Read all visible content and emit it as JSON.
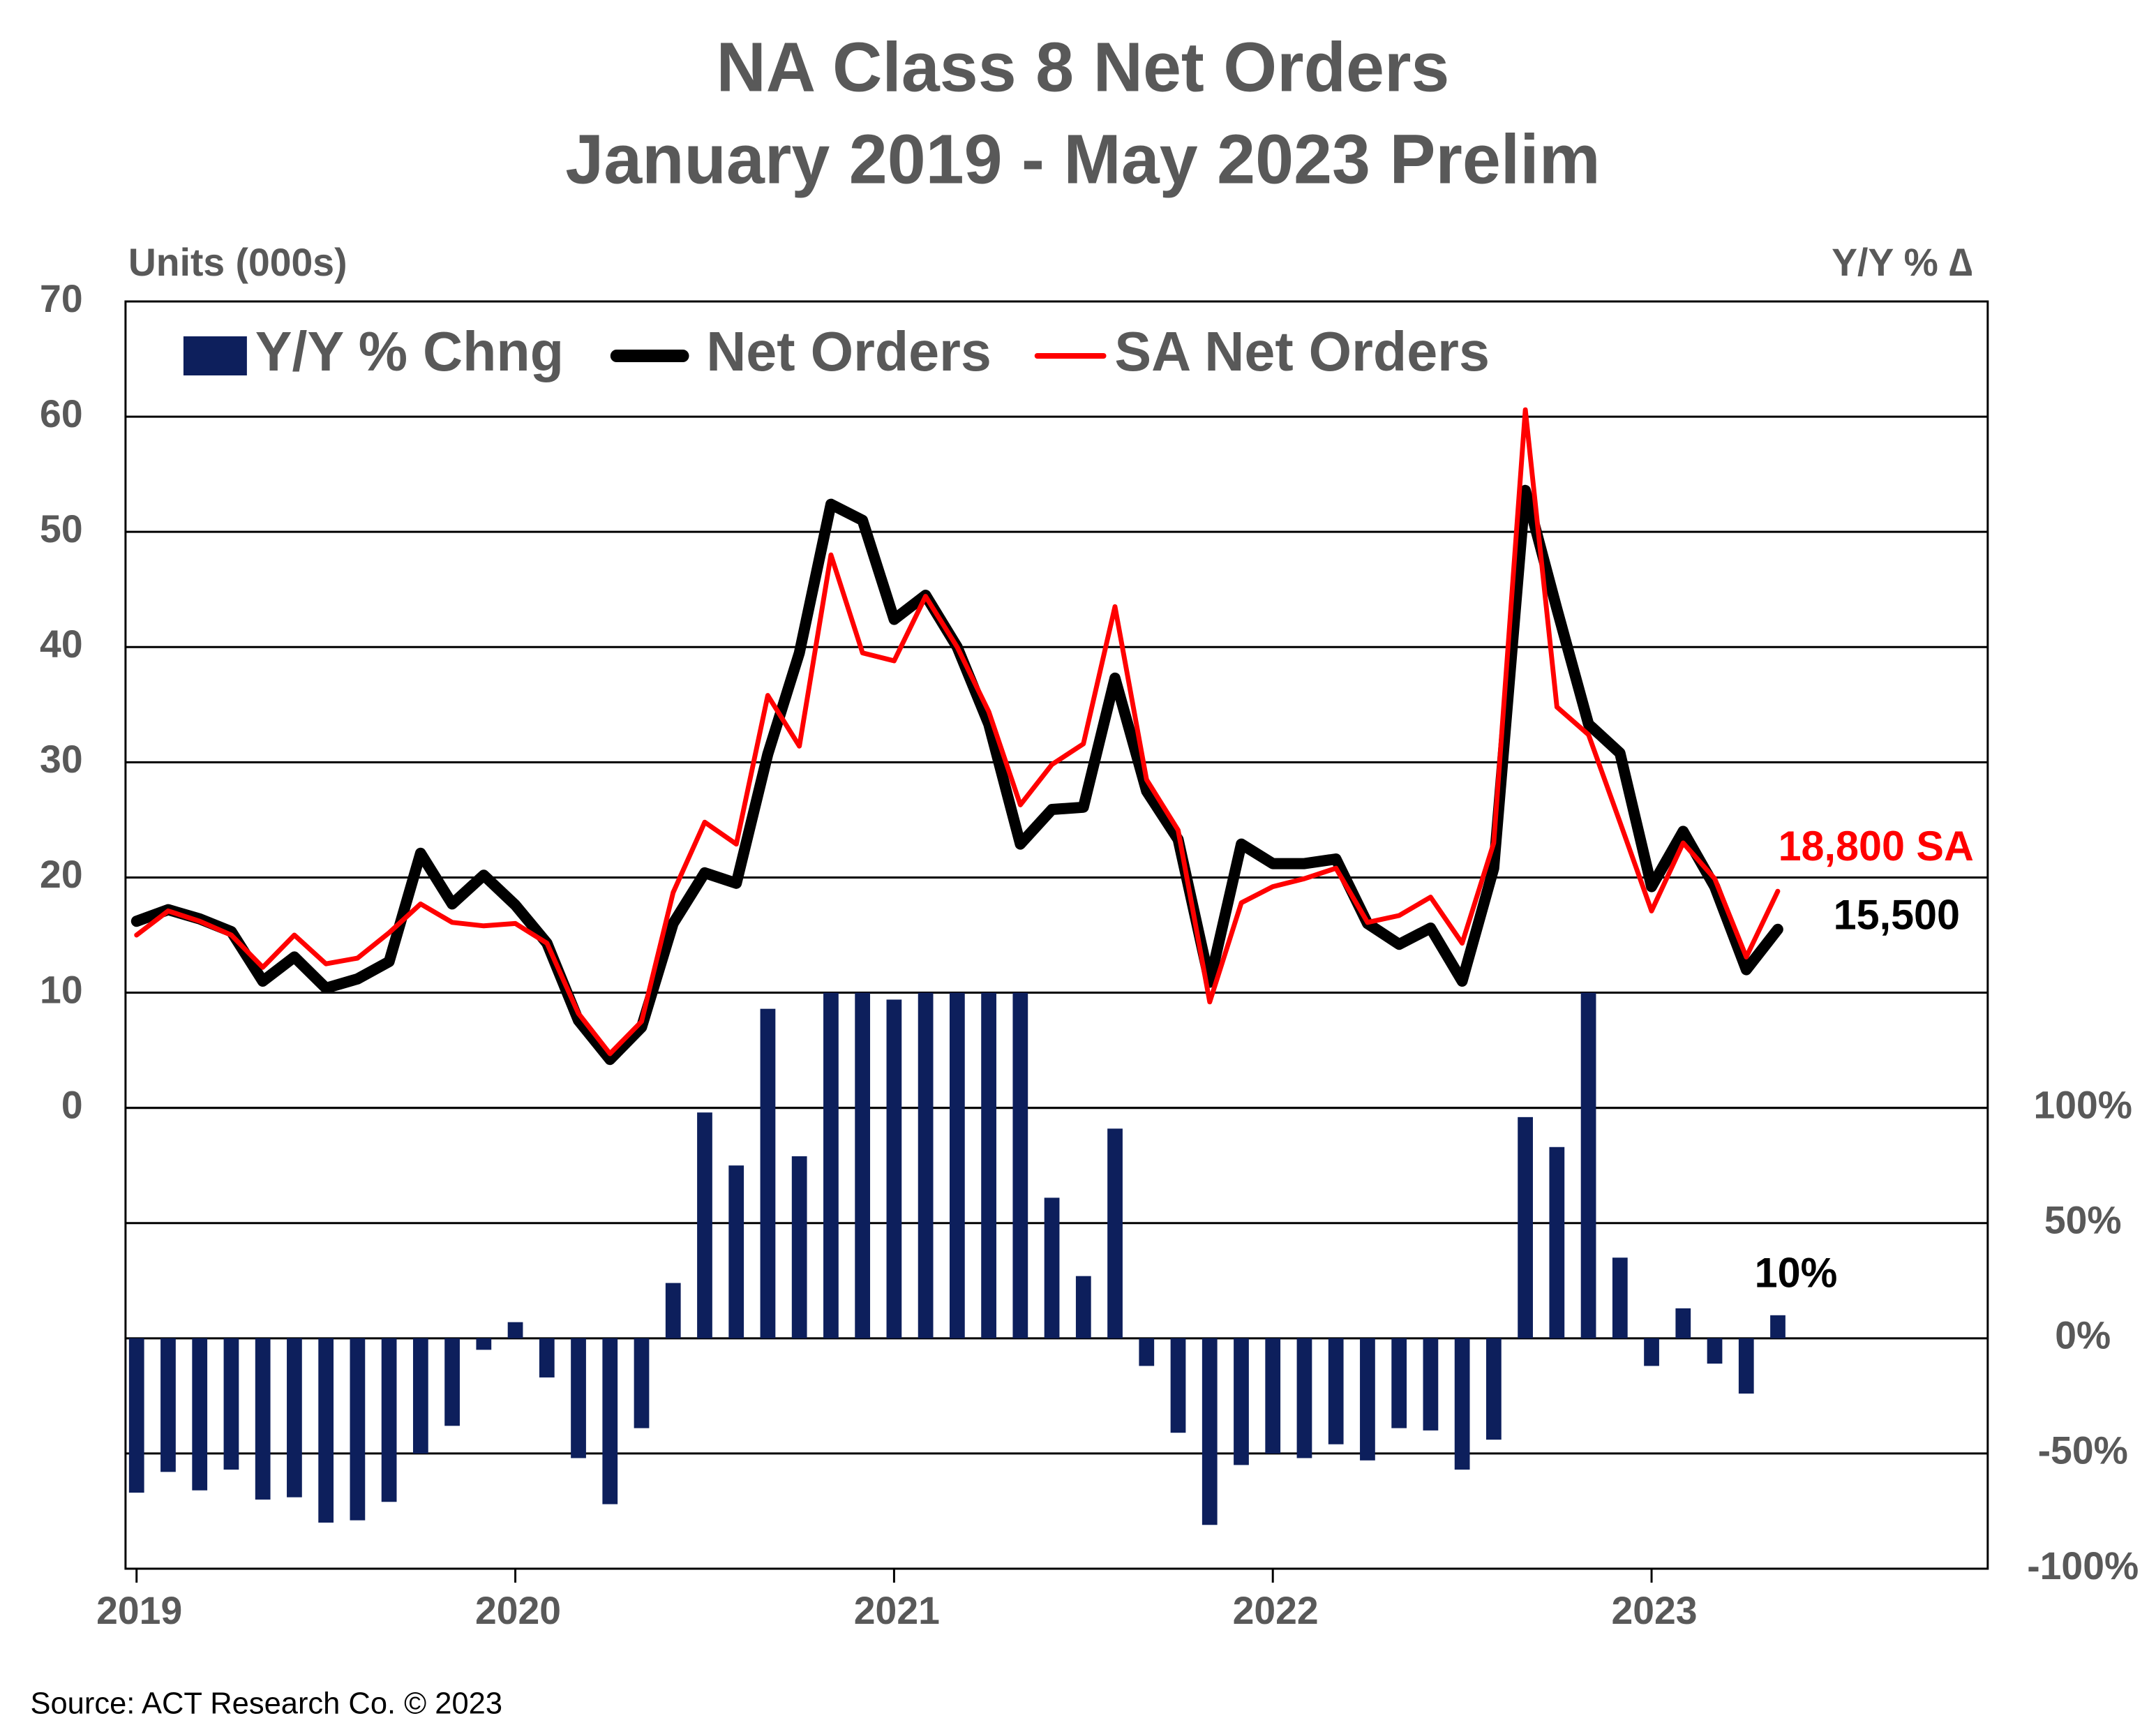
{
  "chart_data": {
    "type": "bar-line",
    "title": "NA Class 8 Net Orders",
    "subtitle": "January 2019 - May 2023 Prelim",
    "ylabel": "Units (000s)",
    "y2label": "Y/Y % ∆",
    "source": "Source: ACT Research Co. © 2023",
    "categories": [
      "2019",
      null,
      null,
      null,
      null,
      null,
      null,
      null,
      null,
      null,
      null,
      null,
      "2020",
      null,
      null,
      null,
      null,
      null,
      null,
      null,
      null,
      null,
      null,
      null,
      "2021",
      null,
      null,
      null,
      null,
      null,
      null,
      null,
      null,
      null,
      null,
      null,
      "2022",
      null,
      null,
      null,
      null,
      null,
      null,
      null,
      null,
      null,
      null,
      null,
      "2023",
      null,
      null,
      null,
      null
    ],
    "ylim": [
      -40,
      70
    ],
    "yticks": [
      0,
      10,
      20,
      30,
      40,
      50,
      60,
      70
    ],
    "y2lim": [
      -100,
      450
    ],
    "y2ticks": [
      {
        "value": -100,
        "label": "-100%"
      },
      {
        "value": -50,
        "label": "-50%"
      },
      {
        "value": 0,
        "label": "0%"
      },
      {
        "value": 50,
        "label": "50%"
      },
      {
        "value": 100,
        "label": "100%"
      }
    ],
    "grid": true,
    "legend": "top-left",
    "series": [
      {
        "name": "Y/Y % Chng",
        "type": "bar",
        "axis": "y2",
        "color": "#0d1f5c",
        "values": [
          -67,
          -58,
          -66,
          -57,
          -70,
          -69,
          -80,
          -79,
          -71,
          -50,
          -38,
          -5,
          7,
          -17,
          -52,
          -72,
          -39,
          24,
          98,
          75,
          143,
          79,
          150,
          150,
          147,
          150,
          150,
          150,
          150,
          61,
          27,
          91,
          -12,
          -41,
          -81,
          -55,
          -50,
          -52,
          -46,
          -53,
          -39,
          -40,
          -57,
          -44,
          96,
          83,
          150,
          35,
          -12,
          13,
          -11,
          -24,
          10
        ]
      },
      {
        "name": "Net Orders",
        "type": "line",
        "color": "#000000",
        "values": [
          16.2,
          17.2,
          16.4,
          15.3,
          11.0,
          13.1,
          10.4,
          11.2,
          12.7,
          22.1,
          17.7,
          20.2,
          17.6,
          14.3,
          7.6,
          4.2,
          7.0,
          16.0,
          20.4,
          19.5,
          30.7,
          39.5,
          52.4,
          51.0,
          42.4,
          44.5,
          40.0,
          33.3,
          22.9,
          25.9,
          26.1,
          37.3,
          27.5,
          23.3,
          10.9,
          22.9,
          21.2,
          21.2,
          21.6,
          16.0,
          14.2,
          15.6,
          11.0,
          20.8,
          53.6,
          43.3,
          33.3,
          30.8,
          19.2,
          24.0,
          19.2,
          12.0,
          15.5
        ]
      },
      {
        "name": "SA Net Orders",
        "type": "line",
        "color": "#ff0000",
        "values": [
          15.0,
          17.1,
          16.2,
          15.0,
          12.2,
          15.0,
          12.5,
          13.0,
          15.2,
          17.7,
          16.1,
          15.8,
          16.0,
          14.3,
          8.2,
          4.7,
          7.5,
          18.7,
          24.8,
          22.9,
          35.8,
          31.4,
          48.0,
          39.5,
          38.8,
          44.4,
          40.0,
          34.4,
          26.3,
          29.8,
          31.6,
          43.5,
          28.5,
          24.1,
          9.2,
          17.8,
          19.2,
          19.9,
          20.8,
          16.1,
          16.7,
          18.3,
          14.3,
          23.0,
          60.6,
          34.8,
          32.4,
          24.8,
          17.1,
          23.0,
          19.9,
          13.1,
          18.8
        ]
      }
    ],
    "annotations": [
      {
        "text": "18,800 SA",
        "color": "#ff0000"
      },
      {
        "text": "15,500",
        "color": "#000000"
      },
      {
        "text": "10%",
        "color": "#000000"
      }
    ]
  }
}
